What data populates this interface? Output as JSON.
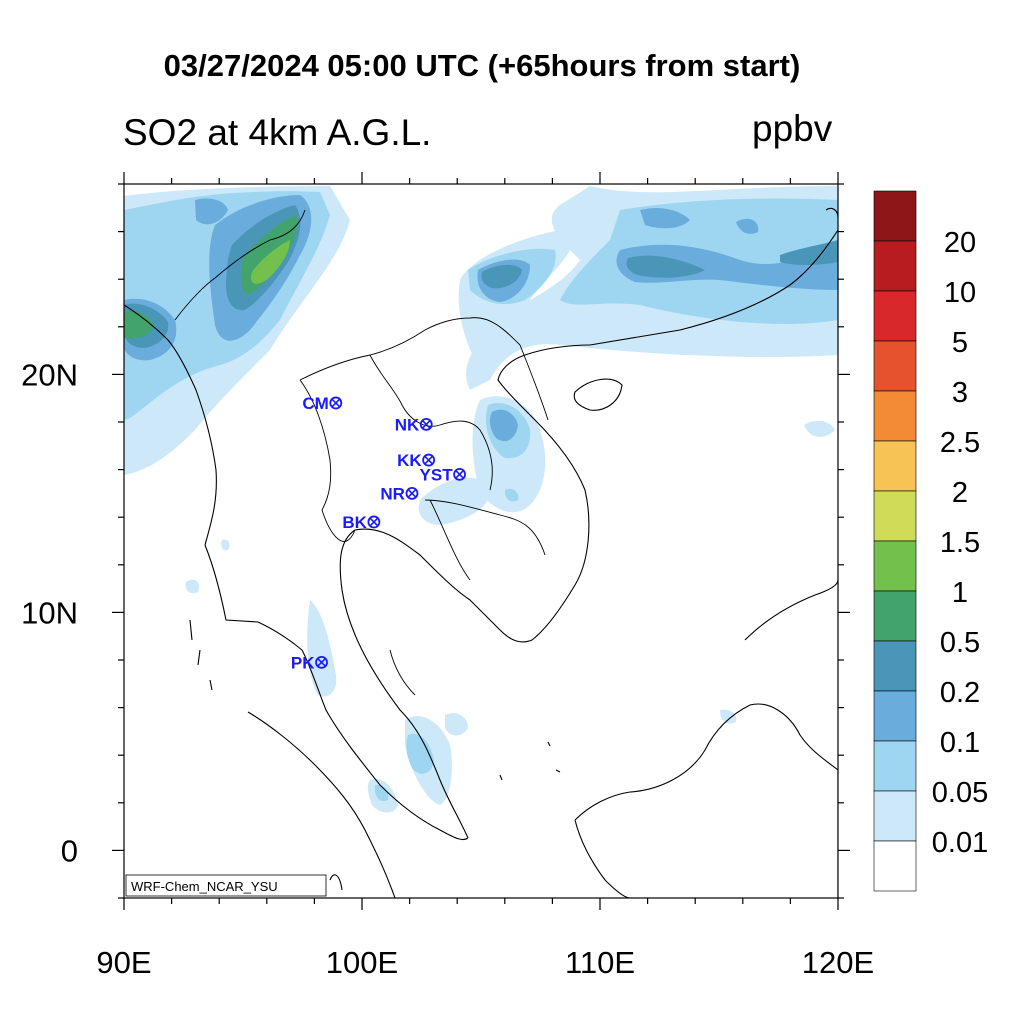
{
  "title": "03/27/2024 05:00 UTC (+65hours from start)",
  "subtitle": "SO2 at 4km A.G.L.",
  "units": "ppbv",
  "credit": "WRF-Chem_NCAR_YSU",
  "map": {
    "lon_range": [
      90,
      120
    ],
    "lat_range": [
      -2,
      28
    ],
    "x_ticks": [
      {
        "value": 90,
        "label": "90E"
      },
      {
        "value": 100,
        "label": "100E"
      },
      {
        "value": 110,
        "label": "110E"
      },
      {
        "value": 120,
        "label": "120E"
      }
    ],
    "y_ticks": [
      {
        "value": 20,
        "label": "20N"
      },
      {
        "value": 10,
        "label": "10N"
      },
      {
        "value": 0,
        "label": "0"
      }
    ]
  },
  "colorbar": {
    "levels": [
      "20",
      "10",
      "5",
      "3",
      "2.5",
      "2",
      "1.5",
      "1",
      "0.5",
      "0.2",
      "0.1",
      "0.05",
      "0.01"
    ],
    "colors": [
      "#8e1518",
      "#b81c20",
      "#d8282c",
      "#e4522e",
      "#f28a36",
      "#f7c354",
      "#cfdc58",
      "#74c04c",
      "#43a36c",
      "#4a96b8",
      "#6aacdc",
      "#9ed6f2",
      "#cde9f9",
      "#ffffff"
    ]
  },
  "stations": [
    {
      "label": "CM",
      "lon": 98.9,
      "lat": 18.8
    },
    {
      "label": "NK",
      "lon": 102.7,
      "lat": 17.9
    },
    {
      "label": "KK",
      "lon": 102.8,
      "lat": 16.4
    },
    {
      "label": "YST",
      "lon": 104.1,
      "lat": 15.8
    },
    {
      "label": "NR",
      "lon": 102.1,
      "lat": 15.0
    },
    {
      "label": "BK",
      "lon": 100.5,
      "lat": 13.8
    },
    {
      "label": "PK",
      "lon": 98.3,
      "lat": 7.9
    }
  ],
  "colors": {
    "station": "#1a1aff",
    "coast": "#000000"
  }
}
